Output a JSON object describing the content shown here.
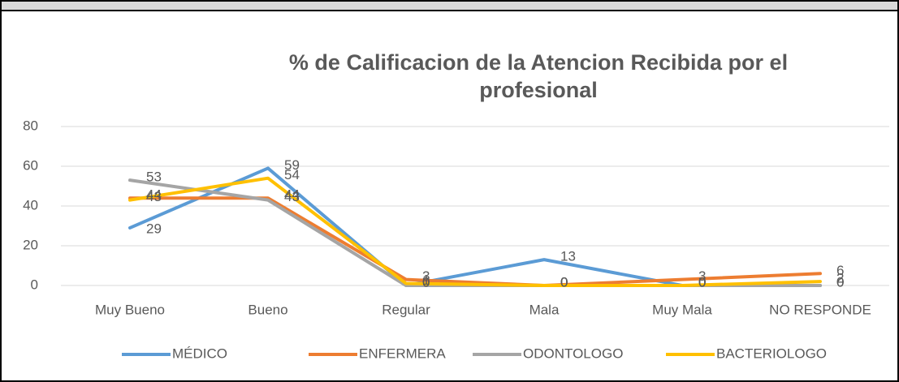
{
  "chart_data": {
    "type": "line",
    "title": "% de Calificacion de la Atencion Recibida por el profesional",
    "categories": [
      "Muy Bueno",
      "Bueno",
      "Regular",
      "Mala",
      "Muy Mala",
      "NO RESPONDE"
    ],
    "series": [
      {
        "name": "MÉDICO",
        "color": "#5b9bd5",
        "values": [
          29,
          59,
          0,
          13,
          0,
          0
        ]
      },
      {
        "name": "ENFERMERA",
        "color": "#ed7d31",
        "values": [
          44,
          44,
          3,
          0,
          3,
          6
        ]
      },
      {
        "name": "ODONTOLOGO",
        "color": "#a5a5a5",
        "values": [
          53,
          43,
          0,
          0,
          0,
          0
        ]
      },
      {
        "name": "BACTERIOLOGO",
        "color": "#ffc000",
        "values": [
          43,
          54,
          1,
          0,
          0,
          2
        ]
      }
    ],
    "ylim": [
      0,
      80
    ],
    "yticks": [
      0,
      20,
      40,
      60,
      80
    ],
    "grid": true,
    "legend": "bottom"
  }
}
